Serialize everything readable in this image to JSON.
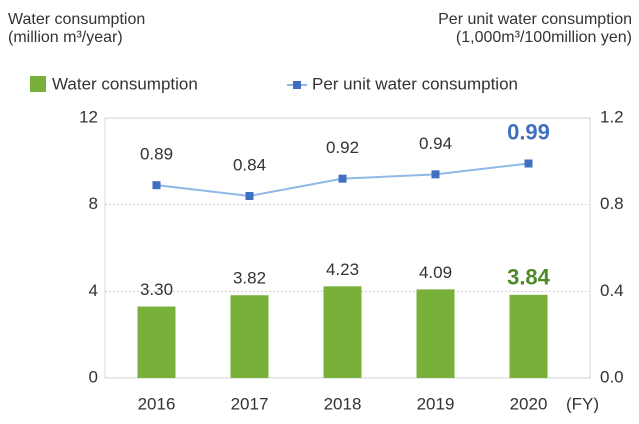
{
  "chart_data": {
    "type": "bar_line",
    "y_label": "Water consumption\n(million m³/year)",
    "y2_label": "Per unit water consumption\n(1,000m³/100million yen)",
    "x_label": "(FY)",
    "categories": [
      "2016",
      "2017",
      "2018",
      "2019",
      "2020"
    ],
    "series": [
      {
        "name": "Water consumption",
        "type": "bar",
        "color": "#78b03a",
        "values": [
          3.3,
          3.82,
          4.23,
          4.09,
          3.84
        ],
        "value_labels": [
          "3.30",
          "3.82",
          "4.23",
          "4.09",
          "3.84"
        ]
      },
      {
        "name": "Per unit water consumption",
        "type": "line",
        "color": "#8fb8e6",
        "marker_color": "#3f6fc0",
        "axis": "y2",
        "values": [
          0.89,
          0.84,
          0.92,
          0.94,
          0.99
        ]
      }
    ],
    "ylim": [
      0,
      12
    ],
    "yticks": [
      0,
      4,
      8,
      12
    ],
    "y2lim": [
      0,
      1.2
    ],
    "y2ticks": [
      {
        "value": 0,
        "label": "0.0"
      },
      0.4,
      0.8,
      1.2
    ],
    "grid": true
  }
}
